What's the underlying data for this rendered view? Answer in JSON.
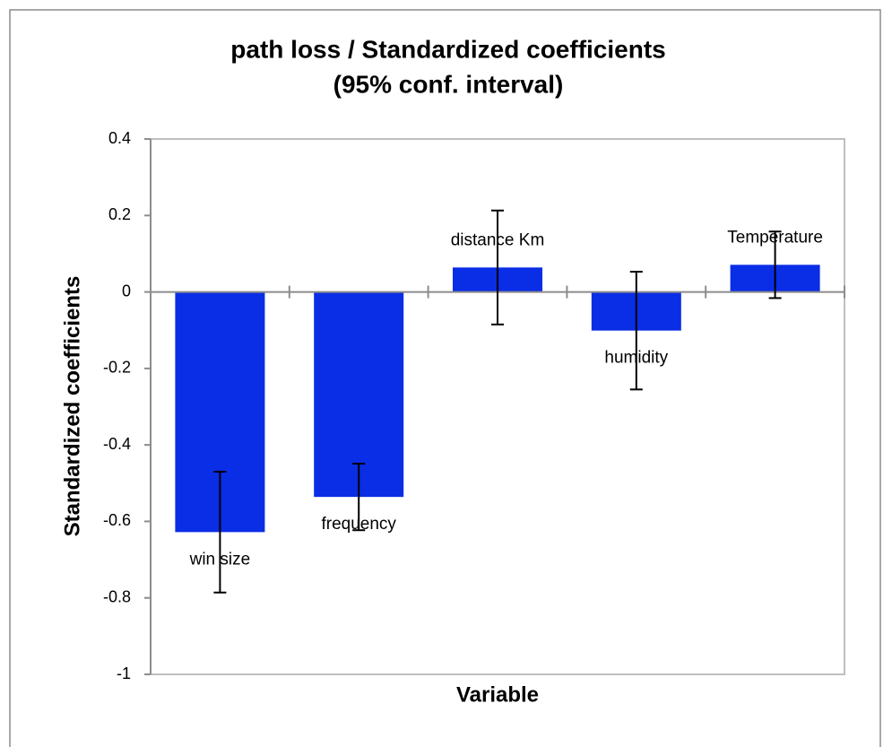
{
  "chart_data": {
    "type": "bar",
    "title": "path loss / Standardized coefficients",
    "subtitle": "(95% conf. interval)",
    "x_label": "Variable",
    "y_label": "Standardized coefficients",
    "categories": [
      "win size",
      "frequency",
      "distance Km",
      "humidity",
      "Temperature"
    ],
    "values": [
      -0.628,
      -0.536,
      0.064,
      -0.101,
      0.071
    ],
    "errors": [
      0.158,
      0.087,
      0.149,
      0.154,
      0.087
    ],
    "color": "#0a2de6",
    "ylim": [
      -1,
      0.4
    ],
    "yticks": [
      0.4,
      0.2,
      0,
      -0.2,
      -0.4,
      -0.6,
      -0.8,
      -1
    ],
    "grid": false
  }
}
